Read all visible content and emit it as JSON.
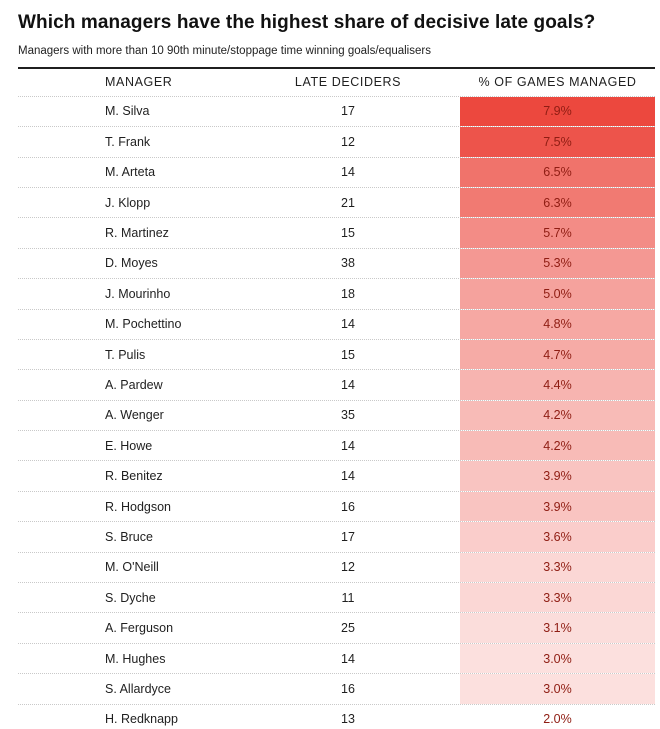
{
  "header": {
    "title": "Which managers have the highest share of decisive late goals?",
    "subtitle": "Managers with more than 10 90th minute/stoppage time winning goals/equalisers"
  },
  "table": {
    "columns": [
      "MANAGER",
      "LATE DECIDERS",
      "% OF GAMES MANAGED"
    ]
  },
  "colors": {
    "heat_base_rgb": "236,72,62",
    "pct_text": "#8f1d13",
    "rule": "#1f1f1f",
    "dotted_divider": "#c9c9c9"
  },
  "chart_data": {
    "type": "heatmap",
    "title": "Which managers have the highest share of decisive late goals?",
    "subtitle": "Managers with more than 10 90th minute/stoppage time winning goals/equalisers",
    "columns": [
      "Manager",
      "Late deciders",
      "% of games managed"
    ],
    "heat_column": "% of games managed",
    "pct_range": [
      2.0,
      7.9
    ],
    "rows": [
      {
        "manager": "M. Silva",
        "late_deciders": 17,
        "pct": 7.9
      },
      {
        "manager": "T. Frank",
        "late_deciders": 12,
        "pct": 7.5
      },
      {
        "manager": "M. Arteta",
        "late_deciders": 14,
        "pct": 6.5
      },
      {
        "manager": "J. Klopp",
        "late_deciders": 21,
        "pct": 6.3
      },
      {
        "manager": "R. Martinez",
        "late_deciders": 15,
        "pct": 5.7
      },
      {
        "manager": "D. Moyes",
        "late_deciders": 38,
        "pct": 5.3
      },
      {
        "manager": "J. Mourinho",
        "late_deciders": 18,
        "pct": 5.0
      },
      {
        "manager": "M. Pochettino",
        "late_deciders": 14,
        "pct": 4.8
      },
      {
        "manager": "T. Pulis",
        "late_deciders": 15,
        "pct": 4.7
      },
      {
        "manager": "A. Pardew",
        "late_deciders": 14,
        "pct": 4.4
      },
      {
        "manager": "A. Wenger",
        "late_deciders": 35,
        "pct": 4.2
      },
      {
        "manager": "E. Howe",
        "late_deciders": 14,
        "pct": 4.2
      },
      {
        "manager": "R. Benitez",
        "late_deciders": 14,
        "pct": 3.9
      },
      {
        "manager": "R. Hodgson",
        "late_deciders": 16,
        "pct": 3.9
      },
      {
        "manager": "S. Bruce",
        "late_deciders": 17,
        "pct": 3.6
      },
      {
        "manager": "M. O'Neill",
        "late_deciders": 12,
        "pct": 3.3
      },
      {
        "manager": "S. Dyche",
        "late_deciders": 11,
        "pct": 3.3
      },
      {
        "manager": "A. Ferguson",
        "late_deciders": 25,
        "pct": 3.1
      },
      {
        "manager": "M. Hughes",
        "late_deciders": 14,
        "pct": 3.0
      },
      {
        "manager": "S. Allardyce",
        "late_deciders": 16,
        "pct": 3.0
      },
      {
        "manager": "H. Redknapp",
        "late_deciders": 13,
        "pct": 2.0
      }
    ]
  }
}
